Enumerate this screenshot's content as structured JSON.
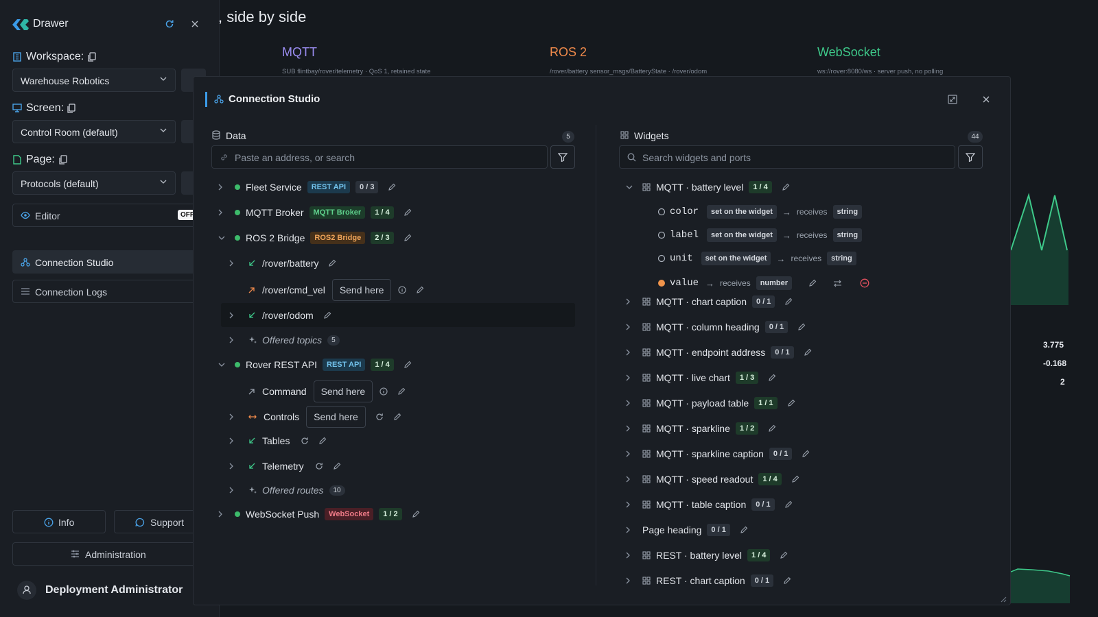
{
  "drawer": {
    "title": "Drawer",
    "workspace_label": "Workspace:",
    "workspace_value": "Warehouse Robotics",
    "screen_label": "Screen:",
    "screen_value": "Control Room (default)",
    "page_label": "Page:",
    "page_value": "Protocols (default)",
    "editor_label": "Editor",
    "editor_toggle": "OFF",
    "nav": [
      {
        "label": "Connection Studio"
      },
      {
        "label": "Connection Logs"
      }
    ],
    "info_label": "Info",
    "support_label": "Support",
    "admin_label": "Administration",
    "user_name": "Deployment Administrator"
  },
  "background": {
    "heading": ", side by side",
    "protocols": [
      {
        "name": "MQTT",
        "sub": "SUB flintbay/rover/telemetry · QoS 1, retained state",
        "color": "#9a8cf0"
      },
      {
        "name": "ROS 2",
        "sub": "/rover/battery sensor_msgs/BatteryState · /rover/odom",
        "color": "#f08a4b"
      },
      {
        "name": "WebSocket",
        "sub": "ws://rover:8080/ws · server push, no polling",
        "color": "#3ec98a"
      }
    ],
    "values": [
      "3.775",
      "-0.168",
      "2"
    ]
  },
  "studio": {
    "title": "Connection Studio",
    "data": {
      "title": "Data",
      "count": "5",
      "search_placeholder": "Paste an address, or search",
      "sources": [
        {
          "name": "Fleet Service",
          "tag": "REST API",
          "ratio": "0 / 3"
        },
        {
          "name": "MQTT Broker",
          "tag": "MQTT Broker",
          "ratio": "1 / 4"
        },
        {
          "name": "ROS 2 Bridge",
          "tag": "ROS2 Bridge",
          "ratio": "2 / 3"
        },
        {
          "name": "Rover REST API",
          "tag": "REST API",
          "ratio": "1 / 4"
        },
        {
          "name": "WebSocket Push",
          "tag": "WebSocket",
          "ratio": "1 / 2"
        }
      ],
      "ros_children": [
        {
          "name": "/rover/battery"
        },
        {
          "name": "/rover/cmd_vel",
          "action": "Send here"
        },
        {
          "name": "/rover/odom"
        }
      ],
      "ros_offered": {
        "label": "Offered topics",
        "count": "5"
      },
      "rest_children": [
        {
          "name": "Command",
          "action": "Send here"
        },
        {
          "name": "Controls",
          "action": "Send here"
        },
        {
          "name": "Tables"
        },
        {
          "name": "Telemetry"
        }
      ],
      "rest_offered": {
        "label": "Offered routes",
        "count": "10"
      }
    },
    "widgets": {
      "title": "Widgets",
      "count": "44",
      "search_placeholder": "Search widgets and ports",
      "expanded": {
        "name": "MQTT · battery level",
        "ratio": "1 / 4"
      },
      "ports": [
        {
          "name": "color",
          "source": "set on the widget",
          "receives": "receives",
          "type": "string"
        },
        {
          "name": "label",
          "source": "set on the widget",
          "receives": "receives",
          "type": "string"
        },
        {
          "name": "unit",
          "source": "set on the widget",
          "receives": "receives",
          "type": "string"
        },
        {
          "name": "value",
          "receives": "receives",
          "type": "number"
        }
      ],
      "items": [
        {
          "name": "MQTT · chart caption",
          "ratio": "0 / 1"
        },
        {
          "name": "MQTT · column heading",
          "ratio": "0 / 1"
        },
        {
          "name": "MQTT · endpoint address",
          "ratio": "0 / 1"
        },
        {
          "name": "MQTT · live chart",
          "ratio": "1 / 3"
        },
        {
          "name": "MQTT · payload table",
          "ratio": "1 / 1"
        },
        {
          "name": "MQTT · sparkline",
          "ratio": "1 / 2"
        },
        {
          "name": "MQTT · sparkline caption",
          "ratio": "0 / 1"
        },
        {
          "name": "MQTT · speed readout",
          "ratio": "1 / 4"
        },
        {
          "name": "MQTT · table caption",
          "ratio": "0 / 1"
        },
        {
          "name": "Page heading",
          "ratio": "0 / 1"
        },
        {
          "name": "REST · battery level",
          "ratio": "1 / 4"
        },
        {
          "name": "REST · chart caption",
          "ratio": "0 / 1"
        }
      ]
    }
  }
}
